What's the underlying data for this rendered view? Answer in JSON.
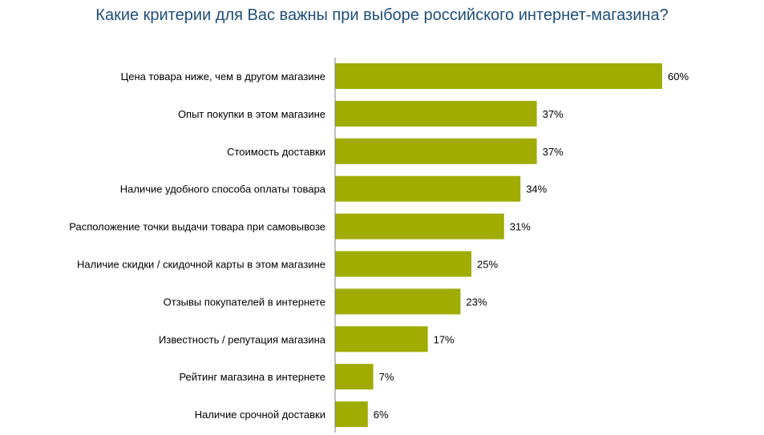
{
  "chart_data": {
    "type": "bar",
    "orientation": "horizontal",
    "title": "Какие критерии для Вас важны при выборе российского интернет-магазина?",
    "categories": [
      "Цена товара ниже, чем в другом магазине",
      "Опыт покупки в этом магазине",
      "Стоимость доставки",
      "Наличие удобного способа оплаты товара",
      "Расположение точки выдачи товара при самовывозе",
      "Наличие скидки / скидочной карты в этом магазине",
      "Отзывы покупателей в интернете",
      "Известность / репутация магазина",
      "Рейтинг магазина в интернете",
      "Наличие срочной доставки"
    ],
    "values": [
      60,
      37,
      37,
      34,
      31,
      25,
      23,
      17,
      7,
      6
    ],
    "value_labels": [
      "60%",
      "37%",
      "37%",
      "34%",
      "31%",
      "25%",
      "23%",
      "17%",
      "7%",
      "6%"
    ],
    "xlim": [
      0,
      80
    ],
    "grid": false,
    "colors": {
      "bar": "#a0ac00",
      "axis": "#7f7f7f",
      "title": "#1f4e79"
    }
  }
}
